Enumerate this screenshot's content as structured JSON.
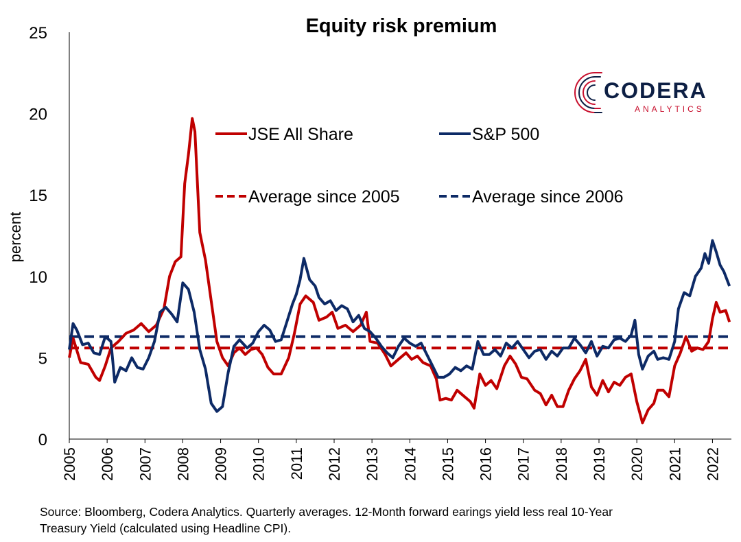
{
  "title": "Equity risk premium",
  "source": "Source: Bloomberg, Codera Analytics. Quarterly averages. 12-Month forward earings yield less real 10-Year Treasury Yield (calculated using Headline CPI).",
  "logo": {
    "word": "CODERA",
    "sub": "ANALYTICS",
    "icon": "circuit-c-logo-icon"
  },
  "colors": {
    "jse": "#c00000",
    "sp": "#0d2a66"
  },
  "chart_data": {
    "type": "line",
    "title": "Equity risk premium",
    "ylabel": "percent",
    "xlabel": "",
    "ylim": [
      0,
      25
    ],
    "xlim": [
      2005.0,
      2022.5
    ],
    "y_ticks": [
      0,
      5,
      10,
      15,
      20,
      25
    ],
    "x_ticks": [
      2005,
      2006,
      2007,
      2008,
      2009,
      2010,
      2011,
      2012,
      2013,
      2014,
      2015,
      2016,
      2017,
      2018,
      2019,
      2020,
      2021,
      2022
    ],
    "legend_position": "top-center",
    "grid": false,
    "series": [
      {
        "name": "JSE All Share",
        "color": "#c00000",
        "style": "solid",
        "points": [
          [
            2005.0,
            5.0
          ],
          [
            2005.1,
            6.2
          ],
          [
            2005.3,
            4.7
          ],
          [
            2005.5,
            4.6
          ],
          [
            2005.7,
            3.8
          ],
          [
            2005.8,
            3.6
          ],
          [
            2005.95,
            4.5
          ],
          [
            2006.1,
            5.6
          ],
          [
            2006.3,
            6.0
          ],
          [
            2006.5,
            6.5
          ],
          [
            2006.7,
            6.7
          ],
          [
            2006.9,
            7.1
          ],
          [
            2007.1,
            6.6
          ],
          [
            2007.3,
            7.0
          ],
          [
            2007.5,
            8.0
          ],
          [
            2007.65,
            10.0
          ],
          [
            2007.8,
            10.9
          ],
          [
            2007.95,
            11.2
          ],
          [
            2008.05,
            15.7
          ],
          [
            2008.15,
            17.5
          ],
          [
            2008.25,
            19.7
          ],
          [
            2008.32,
            18.9
          ],
          [
            2008.45,
            12.7
          ],
          [
            2008.6,
            11.0
          ],
          [
            2008.75,
            8.5
          ],
          [
            2008.9,
            6.0
          ],
          [
            2009.05,
            5.0
          ],
          [
            2009.2,
            4.5
          ],
          [
            2009.35,
            5.3
          ],
          [
            2009.5,
            5.6
          ],
          [
            2009.65,
            5.2
          ],
          [
            2009.8,
            5.5
          ],
          [
            2009.95,
            5.6
          ],
          [
            2010.1,
            5.2
          ],
          [
            2010.25,
            4.4
          ],
          [
            2010.4,
            4.0
          ],
          [
            2010.6,
            4.0
          ],
          [
            2010.8,
            5.0
          ],
          [
            2010.95,
            6.5
          ],
          [
            2011.1,
            8.3
          ],
          [
            2011.25,
            8.8
          ],
          [
            2011.45,
            8.4
          ],
          [
            2011.6,
            7.3
          ],
          [
            2011.8,
            7.5
          ],
          [
            2011.95,
            7.8
          ],
          [
            2012.1,
            6.8
          ],
          [
            2012.3,
            7.0
          ],
          [
            2012.5,
            6.6
          ],
          [
            2012.7,
            7.0
          ],
          [
            2012.85,
            7.8
          ],
          [
            2012.95,
            6.0
          ],
          [
            2013.15,
            5.9
          ],
          [
            2013.35,
            5.2
          ],
          [
            2013.5,
            4.5
          ],
          [
            2013.7,
            4.9
          ],
          [
            2013.9,
            5.3
          ],
          [
            2014.05,
            4.9
          ],
          [
            2014.2,
            5.1
          ],
          [
            2014.35,
            4.7
          ],
          [
            2014.55,
            4.5
          ],
          [
            2014.7,
            3.7
          ],
          [
            2014.8,
            2.4
          ],
          [
            2014.95,
            2.5
          ],
          [
            2015.1,
            2.4
          ],
          [
            2015.25,
            3.0
          ],
          [
            2015.45,
            2.6
          ],
          [
            2015.6,
            2.3
          ],
          [
            2015.7,
            1.9
          ],
          [
            2015.85,
            4.0
          ],
          [
            2016.0,
            3.3
          ],
          [
            2016.15,
            3.6
          ],
          [
            2016.3,
            3.1
          ],
          [
            2016.5,
            4.5
          ],
          [
            2016.65,
            5.1
          ],
          [
            2016.8,
            4.6
          ],
          [
            2016.95,
            3.8
          ],
          [
            2017.1,
            3.7
          ],
          [
            2017.3,
            3.0
          ],
          [
            2017.45,
            2.8
          ],
          [
            2017.6,
            2.1
          ],
          [
            2017.75,
            2.7
          ],
          [
            2017.9,
            2.0
          ],
          [
            2018.05,
            2.0
          ],
          [
            2018.2,
            3.0
          ],
          [
            2018.35,
            3.7
          ],
          [
            2018.5,
            4.2
          ],
          [
            2018.65,
            4.9
          ],
          [
            2018.8,
            3.2
          ],
          [
            2018.95,
            2.7
          ],
          [
            2019.1,
            3.6
          ],
          [
            2019.25,
            2.9
          ],
          [
            2019.4,
            3.5
          ],
          [
            2019.55,
            3.3
          ],
          [
            2019.7,
            3.8
          ],
          [
            2019.85,
            4.0
          ],
          [
            2020.0,
            2.3
          ],
          [
            2020.15,
            1.0
          ],
          [
            2020.3,
            1.8
          ],
          [
            2020.45,
            2.2
          ],
          [
            2020.55,
            3.0
          ],
          [
            2020.7,
            3.0
          ],
          [
            2020.85,
            2.6
          ],
          [
            2021.0,
            4.5
          ],
          [
            2021.15,
            5.3
          ],
          [
            2021.3,
            6.3
          ],
          [
            2021.45,
            5.4
          ],
          [
            2021.6,
            5.6
          ],
          [
            2021.75,
            5.5
          ],
          [
            2021.9,
            6.0
          ],
          [
            2022.0,
            7.4
          ],
          [
            2022.1,
            8.4
          ],
          [
            2022.2,
            7.8
          ],
          [
            2022.35,
            7.9
          ],
          [
            2022.45,
            7.2
          ]
        ]
      },
      {
        "name": "S&P 500",
        "color": "#0d2a66",
        "style": "solid",
        "points": [
          [
            2005.0,
            5.5
          ],
          [
            2005.1,
            7.1
          ],
          [
            2005.2,
            6.7
          ],
          [
            2005.35,
            5.8
          ],
          [
            2005.5,
            5.9
          ],
          [
            2005.65,
            5.3
          ],
          [
            2005.8,
            5.2
          ],
          [
            2005.95,
            6.3
          ],
          [
            2006.1,
            6.0
          ],
          [
            2006.2,
            3.5
          ],
          [
            2006.35,
            4.4
          ],
          [
            2006.5,
            4.2
          ],
          [
            2006.65,
            5.0
          ],
          [
            2006.8,
            4.4
          ],
          [
            2006.95,
            4.3
          ],
          [
            2007.1,
            5.0
          ],
          [
            2007.25,
            6.0
          ],
          [
            2007.4,
            7.8
          ],
          [
            2007.55,
            8.1
          ],
          [
            2007.7,
            7.7
          ],
          [
            2007.85,
            7.2
          ],
          [
            2008.0,
            9.6
          ],
          [
            2008.15,
            9.2
          ],
          [
            2008.3,
            7.8
          ],
          [
            2008.45,
            5.5
          ],
          [
            2008.6,
            4.3
          ],
          [
            2008.75,
            2.2
          ],
          [
            2008.9,
            1.7
          ],
          [
            2009.05,
            2.0
          ],
          [
            2009.2,
            4.1
          ],
          [
            2009.35,
            5.7
          ],
          [
            2009.5,
            6.1
          ],
          [
            2009.7,
            5.6
          ],
          [
            2009.85,
            5.9
          ],
          [
            2010.0,
            6.6
          ],
          [
            2010.15,
            7.0
          ],
          [
            2010.3,
            6.7
          ],
          [
            2010.45,
            6.0
          ],
          [
            2010.6,
            6.1
          ],
          [
            2010.75,
            7.2
          ],
          [
            2010.9,
            8.3
          ],
          [
            2011.0,
            8.9
          ],
          [
            2011.1,
            9.8
          ],
          [
            2011.2,
            11.1
          ],
          [
            2011.35,
            9.8
          ],
          [
            2011.5,
            9.4
          ],
          [
            2011.6,
            8.7
          ],
          [
            2011.75,
            8.3
          ],
          [
            2011.9,
            8.5
          ],
          [
            2012.05,
            7.9
          ],
          [
            2012.2,
            8.2
          ],
          [
            2012.35,
            8.0
          ],
          [
            2012.5,
            7.2
          ],
          [
            2012.65,
            7.6
          ],
          [
            2012.8,
            6.8
          ],
          [
            2012.95,
            6.6
          ],
          [
            2013.1,
            6.2
          ],
          [
            2013.25,
            5.7
          ],
          [
            2013.4,
            5.3
          ],
          [
            2013.55,
            5.0
          ],
          [
            2013.7,
            5.7
          ],
          [
            2013.85,
            6.2
          ],
          [
            2014.0,
            5.9
          ],
          [
            2014.15,
            5.7
          ],
          [
            2014.3,
            5.9
          ],
          [
            2014.45,
            5.2
          ],
          [
            2014.6,
            4.5
          ],
          [
            2014.75,
            3.8
          ],
          [
            2014.9,
            3.8
          ],
          [
            2015.05,
            4.0
          ],
          [
            2015.2,
            4.4
          ],
          [
            2015.35,
            4.2
          ],
          [
            2015.5,
            4.5
          ],
          [
            2015.65,
            4.3
          ],
          [
            2015.8,
            6.0
          ],
          [
            2015.95,
            5.2
          ],
          [
            2016.1,
            5.2
          ],
          [
            2016.25,
            5.5
          ],
          [
            2016.4,
            5.1
          ],
          [
            2016.55,
            5.9
          ],
          [
            2016.7,
            5.6
          ],
          [
            2016.85,
            6.0
          ],
          [
            2017.0,
            5.5
          ],
          [
            2017.15,
            5.0
          ],
          [
            2017.3,
            5.4
          ],
          [
            2017.45,
            5.5
          ],
          [
            2017.6,
            4.9
          ],
          [
            2017.75,
            5.4
          ],
          [
            2017.9,
            5.1
          ],
          [
            2018.05,
            5.6
          ],
          [
            2018.2,
            5.6
          ],
          [
            2018.35,
            6.2
          ],
          [
            2018.5,
            5.8
          ],
          [
            2018.65,
            5.3
          ],
          [
            2018.8,
            6.0
          ],
          [
            2018.95,
            5.1
          ],
          [
            2019.1,
            5.7
          ],
          [
            2019.25,
            5.6
          ],
          [
            2019.4,
            6.1
          ],
          [
            2019.55,
            6.2
          ],
          [
            2019.7,
            6.0
          ],
          [
            2019.85,
            6.4
          ],
          [
            2019.95,
            7.3
          ],
          [
            2020.05,
            5.2
          ],
          [
            2020.15,
            4.3
          ],
          [
            2020.3,
            5.1
          ],
          [
            2020.45,
            5.4
          ],
          [
            2020.55,
            4.9
          ],
          [
            2020.7,
            5.0
          ],
          [
            2020.85,
            4.9
          ],
          [
            2021.0,
            6.0
          ],
          [
            2021.1,
            8.0
          ],
          [
            2021.25,
            9.0
          ],
          [
            2021.4,
            8.8
          ],
          [
            2021.55,
            10.0
          ],
          [
            2021.7,
            10.5
          ],
          [
            2021.8,
            11.4
          ],
          [
            2021.9,
            10.8
          ],
          [
            2022.0,
            12.2
          ],
          [
            2022.1,
            11.5
          ],
          [
            2022.2,
            10.7
          ],
          [
            2022.3,
            10.3
          ],
          [
            2022.45,
            9.4
          ]
        ]
      },
      {
        "name": "Average since 2005",
        "color": "#c00000",
        "style": "dashed",
        "points": [
          [
            2005.0,
            5.6
          ],
          [
            2022.5,
            5.6
          ]
        ]
      },
      {
        "name": "Average since 2006",
        "color": "#0d2a66",
        "style": "dashed",
        "points": [
          [
            2005.0,
            6.3
          ],
          [
            2022.5,
            6.3
          ]
        ]
      }
    ]
  }
}
